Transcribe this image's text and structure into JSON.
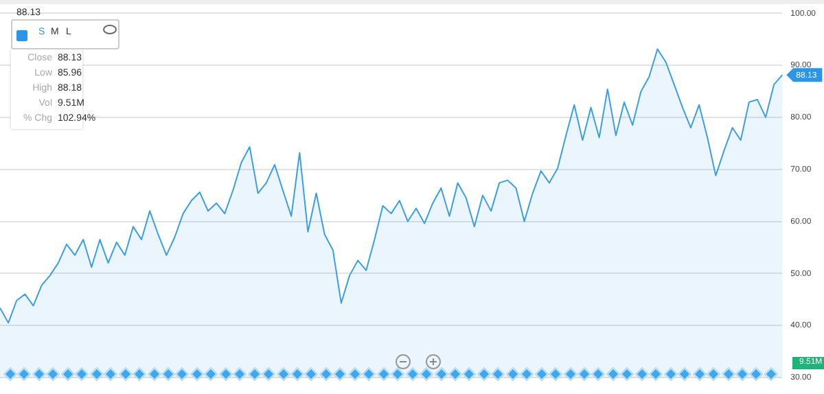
{
  "chart_data": {
    "type": "area",
    "categories": [
      null,
      null,
      null,
      null,
      null,
      null,
      null,
      null,
      null,
      null,
      null,
      null,
      null,
      null,
      null,
      null,
      null,
      null,
      null,
      null,
      null,
      null,
      null,
      null,
      null,
      null,
      null,
      null,
      null,
      null,
      null,
      null,
      null,
      null,
      null,
      null,
      null,
      null,
      null,
      null,
      null,
      null,
      null,
      null,
      null,
      null,
      null,
      null,
      null,
      null,
      null,
      null,
      null,
      null,
      null,
      null,
      null,
      null,
      null,
      null,
      null,
      null,
      null,
      null,
      null,
      null,
      null,
      null,
      null,
      null,
      null,
      null,
      null,
      null,
      null,
      null,
      null,
      null,
      null,
      null,
      null,
      null,
      null,
      null,
      null,
      null,
      null,
      null,
      null,
      null,
      null,
      null,
      null,
      null,
      null
    ],
    "series": [
      {
        "color": "#3a9ee8",
        "values": [
          43.4,
          40.5,
          44.8,
          46,
          43.8,
          47.7,
          49.6,
          52,
          55.6,
          53.5,
          56.5,
          51.2,
          56.5,
          52,
          56,
          53.5,
          59,
          56.5,
          62,
          57.5,
          53.5,
          57,
          61.5,
          64,
          65.6,
          62,
          63.5,
          61.5,
          66,
          71.3,
          74.3,
          65.4,
          67.4,
          70.9,
          65.9,
          61,
          73.2,
          58,
          65.4,
          57.5,
          54.5,
          44.3,
          49.6,
          52.5,
          50.6,
          56.5,
          63,
          61.5,
          64,
          60,
          62.5,
          59.6,
          63.5,
          66.4,
          61,
          67.4,
          64.5,
          59,
          65,
          62,
          67.4,
          67.9,
          66.4,
          60,
          65.4,
          69.7,
          67.4,
          70.2,
          76.5,
          82.4,
          75.6,
          81.9,
          76.1,
          85.4,
          76.5,
          82.9,
          78.5,
          84.9,
          87.8,
          93.1,
          90.6,
          86.3,
          81.9,
          78,
          82.4,
          76.1,
          68.8,
          73.6,
          78,
          75.6,
          82.9,
          83.4,
          80,
          86.3,
          88.13
        ]
      }
    ],
    "ylim": [
      30,
      100
    ],
    "yticks": [
      {
        "value": 30,
        "label": "30.00"
      },
      {
        "value": 40,
        "label": "40.00"
      },
      {
        "value": 50,
        "label": "50.00"
      },
      {
        "value": 60,
        "label": "60.00"
      },
      {
        "value": 70,
        "label": "70.00"
      },
      {
        "value": 80,
        "label": "80.00"
      },
      {
        "value": 90,
        "label": "90.00"
      },
      {
        "value": 100,
        "label": "100.00"
      }
    ],
    "tick_labels": "y",
    "grid": "y",
    "legend": false,
    "marker": "none",
    "annotations": [
      "88.13",
      "S",
      "M",
      "L",
      "Close 88.13",
      "Low 85.96",
      "High 88.18",
      "Vol 9.51M",
      "% Chg 102.94%",
      "88.13",
      "9.51M"
    ]
  }
}
